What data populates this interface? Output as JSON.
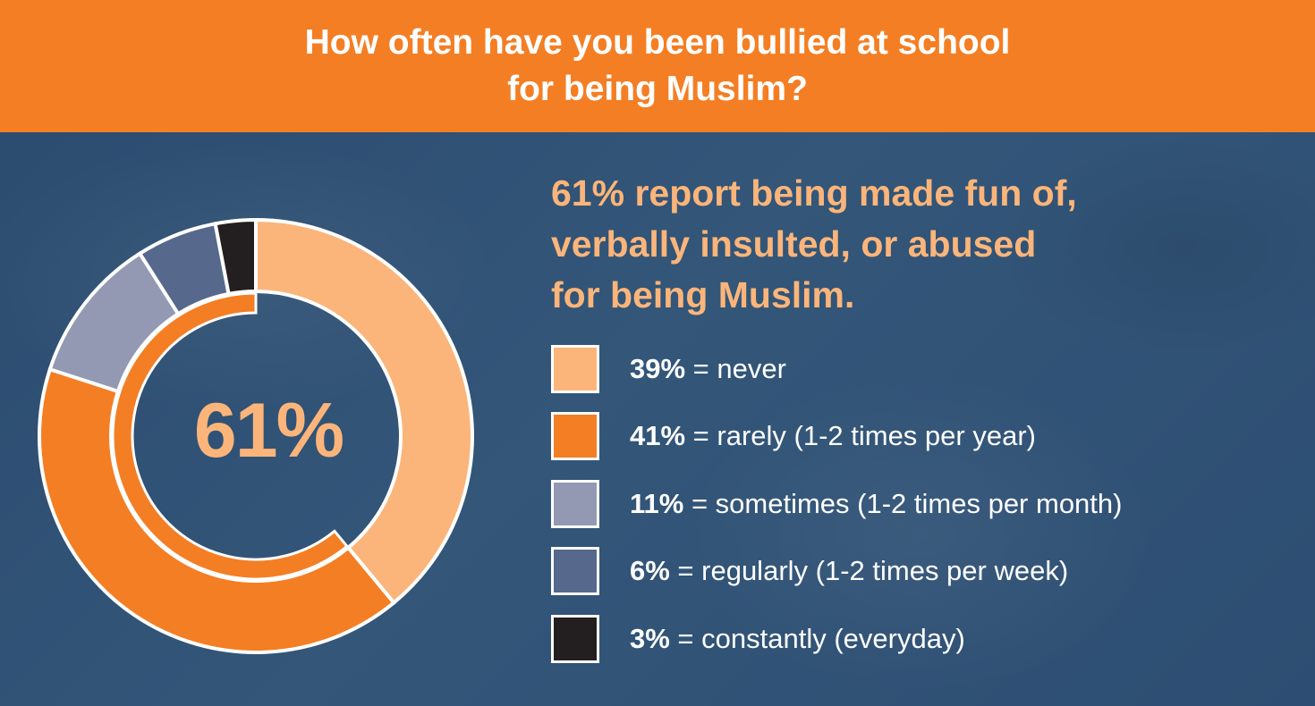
{
  "header": {
    "title_line1": "How often have you been bullied at school",
    "title_line2": "for being Muslim?"
  },
  "headline": {
    "line1": "61% report being made fun of,",
    "line2": "verbally insulted, or abused",
    "line3": "for being Muslim."
  },
  "chart_data": {
    "type": "pie",
    "style": "donut",
    "center_label": "61%",
    "slices": [
      {
        "label": "never",
        "value": 39,
        "color": "#fbb57a"
      },
      {
        "label": "rarely (1-2 times per year)",
        "value": 41,
        "color": "#f47e24"
      },
      {
        "label": "sometimes (1-2 times per month)",
        "value": 11,
        "color": "#9399b3"
      },
      {
        "label": "regularly (1-2 times per week)",
        "value": 6,
        "color": "#56698c"
      },
      {
        "label": "constantly (everyday)",
        "value": 3,
        "color": "#231f20"
      }
    ],
    "inner_ring": {
      "value": 61,
      "color": "#f47e24"
    }
  },
  "legend": [
    {
      "pct": "39%",
      "text": " = never",
      "color": "#fbb57a"
    },
    {
      "pct": "41%",
      "text": " = rarely (1-2 times per year)",
      "color": "#f47e24"
    },
    {
      "pct": "11%",
      "text": " = sometimes (1-2 times per month)",
      "color": "#9399b3"
    },
    {
      "pct": "6%",
      "text": " = regularly (1-2 times per week)",
      "color": "#56698c"
    },
    {
      "pct": "3%",
      "text": " = constantly (everyday)",
      "color": "#231f20"
    }
  ]
}
